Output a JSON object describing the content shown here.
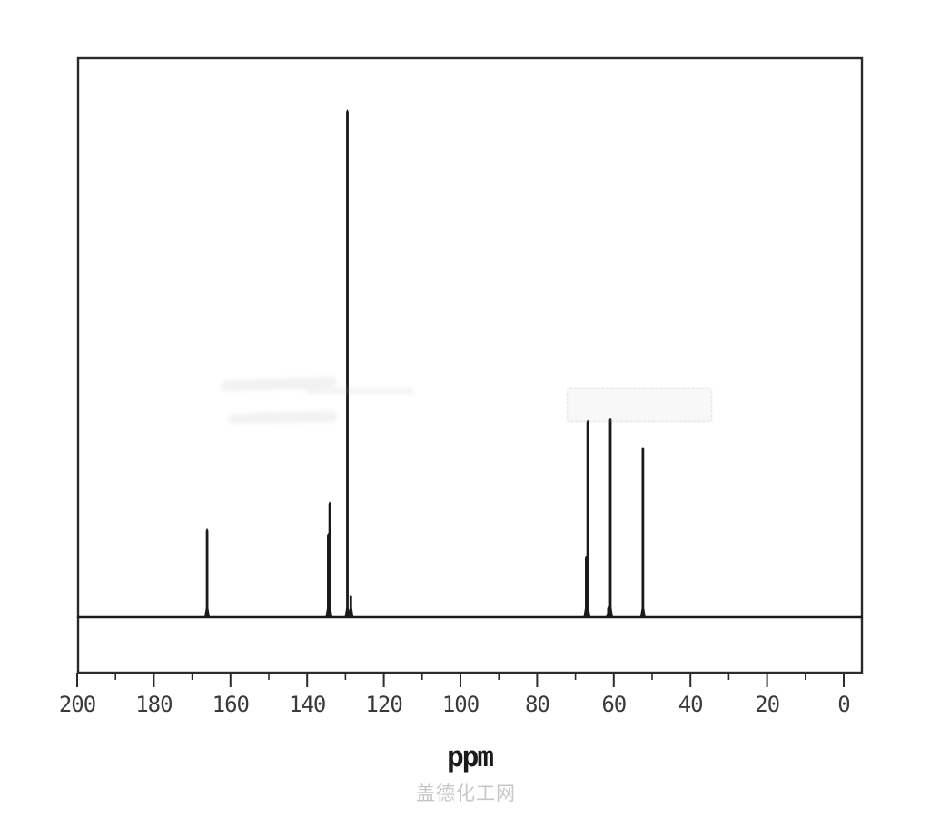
{
  "watermark": {
    "text": "盖德化工网",
    "color": "#c7c7c7"
  },
  "chart_data": {
    "type": "line",
    "subtype": "13C-NMR-spectrum",
    "title": "",
    "xlabel": "ppm",
    "ylabel": "",
    "x_axis": {
      "min": -5,
      "max": 200,
      "reversed": true,
      "major_ticks": [
        200,
        180,
        160,
        140,
        120,
        100,
        80,
        60,
        40,
        20,
        0
      ],
      "minor_ticks": [
        190,
        170,
        150,
        130,
        110,
        90,
        70,
        50,
        30,
        10
      ],
      "grid": false
    },
    "y_axis": {
      "visible": false
    },
    "line_color": "#1a1a1a",
    "frame_color": "#2b2b2b",
    "legend": "none",
    "peaks": [
      {
        "ppm": 166.1,
        "intensity": 0.174
      },
      {
        "ppm": 134.5,
        "intensity": 0.165
      },
      {
        "ppm": 134.1,
        "intensity": 0.227
      },
      {
        "ppm": 129.5,
        "intensity": 1.0
      },
      {
        "ppm": 128.6,
        "intensity": 0.045
      },
      {
        "ppm": 67.2,
        "intensity": 0.12
      },
      {
        "ppm": 66.8,
        "intensity": 0.388
      },
      {
        "ppm": 61.4,
        "intensity": 0.021
      },
      {
        "ppm": 60.9,
        "intensity": 0.392
      },
      {
        "ppm": 52.4,
        "intensity": 0.335
      }
    ]
  }
}
